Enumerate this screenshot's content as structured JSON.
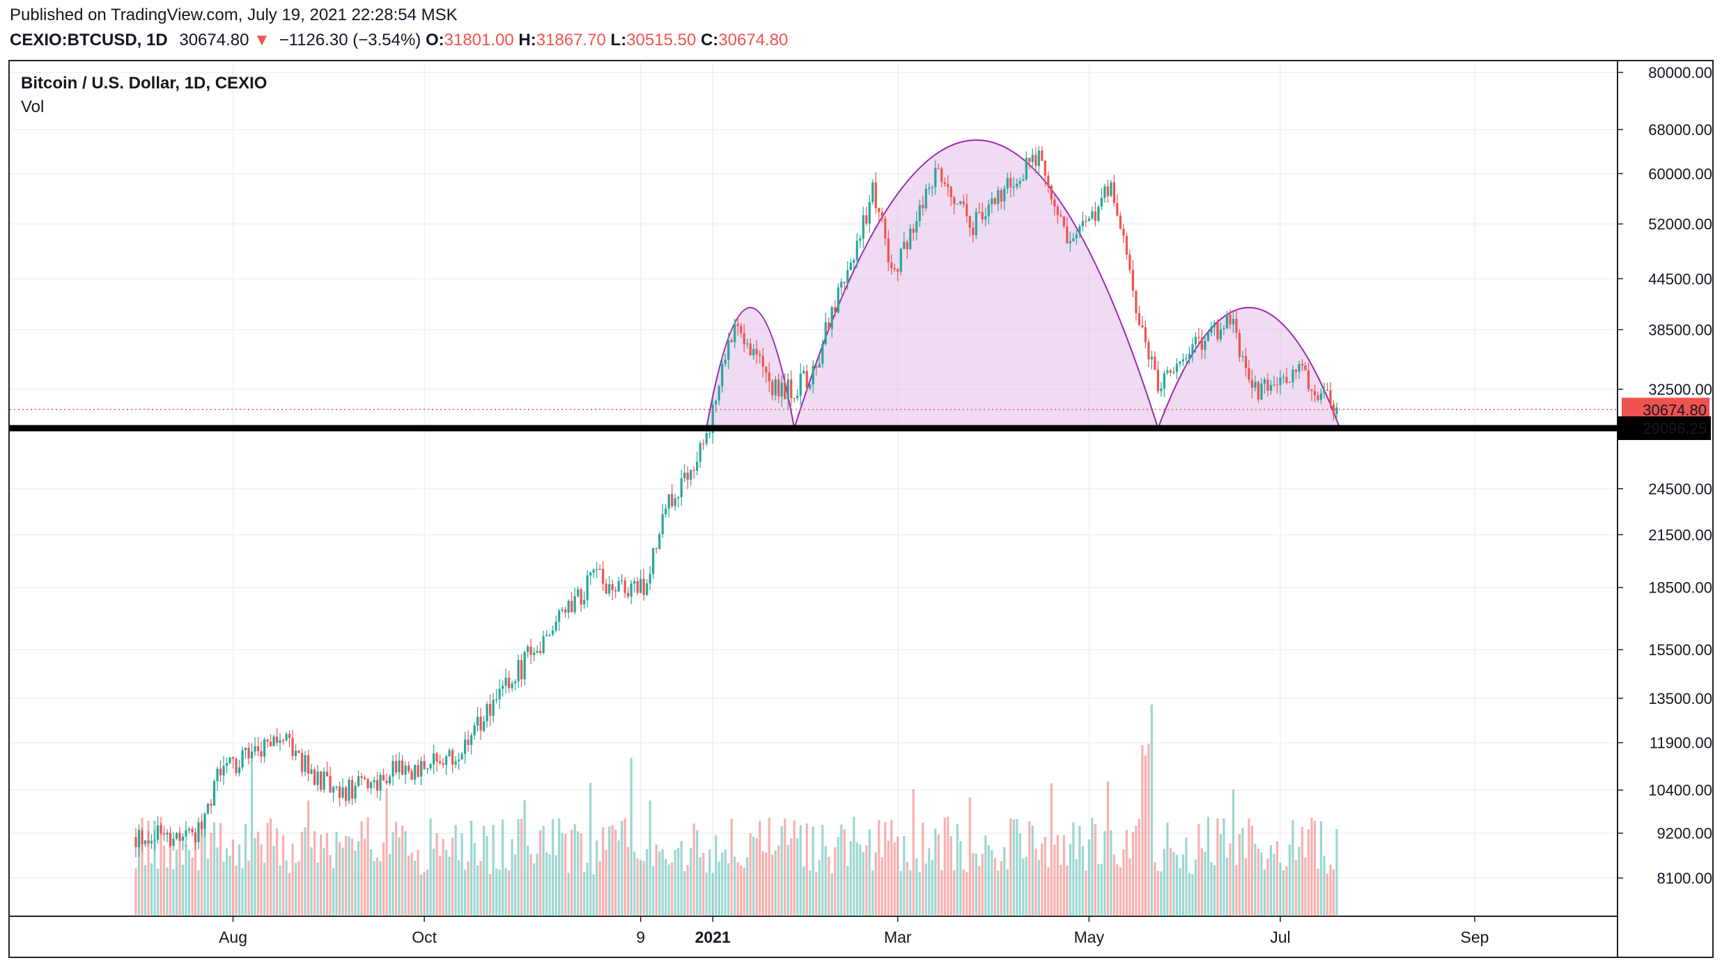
{
  "header": {
    "published": "Published on TradingView.com, July 19, 2021 22:28:54 MSK",
    "symbol": "CEXIO:BTCUSD, 1D",
    "last": "30674.80",
    "change": "−1126.30 (−3.54%)",
    "open_label": "O:",
    "open": "31801.00",
    "high_label": "H:",
    "high": "31867.70",
    "low_label": "L:",
    "low": "30515.50",
    "close_label": "C:",
    "close": "30674.80"
  },
  "chart_data": {
    "type": "candlestick",
    "title": "Bitcoin / U.S. Dollar, 1D, CEXIO",
    "volume_label": "Vol",
    "scale": "log",
    "ylim": [
      7000,
      82000
    ],
    "y_ticks": [
      "80000.00",
      "68000.00",
      "60000.00",
      "52000.00",
      "44500.00",
      "38500.00",
      "32500.00",
      "24500.00",
      "21500.00",
      "18500.00",
      "15500.00",
      "13500.00",
      "11900.00",
      "10400.00",
      "9200.00",
      "8100.00"
    ],
    "x_ticks": [
      {
        "label": "Aug",
        "bold": false
      },
      {
        "label": "Oct",
        "bold": false
      },
      {
        "label": "9",
        "bold": false
      },
      {
        "label": "2021",
        "bold": true
      },
      {
        "label": "Mar",
        "bold": false
      },
      {
        "label": "May",
        "bold": false
      },
      {
        "label": "Jul",
        "bold": false
      },
      {
        "label": "Sep",
        "bold": false
      }
    ],
    "price_path": [
      [
        "2020-07-01",
        9100
      ],
      [
        "2020-07-20",
        9200
      ],
      [
        "2020-07-28",
        11000
      ],
      [
        "2020-08-17",
        12000
      ],
      [
        "2020-09-03",
        10200
      ],
      [
        "2020-09-20",
        10900
      ],
      [
        "2020-10-10",
        11300
      ],
      [
        "2020-10-21",
        12900
      ],
      [
        "2020-11-05",
        15500
      ],
      [
        "2020-11-24",
        19000
      ],
      [
        "2020-12-10",
        18300
      ],
      [
        "2020-12-17",
        23000
      ],
      [
        "2020-12-31",
        29000
      ],
      [
        "2021-01-08",
        40000
      ],
      [
        "2021-01-22",
        32000
      ],
      [
        "2021-02-01",
        33500
      ],
      [
        "2021-02-16",
        49000
      ],
      [
        "2021-02-21",
        57000
      ],
      [
        "2021-02-28",
        45000
      ],
      [
        "2021-03-13",
        61000
      ],
      [
        "2021-03-25",
        52000
      ],
      [
        "2021-04-14",
        63500
      ],
      [
        "2021-04-25",
        48000
      ],
      [
        "2021-05-08",
        58000
      ],
      [
        "2021-05-19",
        36000
      ],
      [
        "2021-05-23",
        33000
      ],
      [
        "2021-06-15",
        40000
      ],
      [
        "2021-06-22",
        32000
      ],
      [
        "2021-07-07",
        34000
      ],
      [
        "2021-07-19",
        30674.8
      ]
    ],
    "volume_max": 13000,
    "current_price": "30674.80",
    "neckline": "29096.25",
    "patterns": [
      {
        "name": "left-shoulder",
        "start": "2020-12-30",
        "end": "2021-01-27",
        "peak": 41000,
        "base": 29096.25
      },
      {
        "name": "head",
        "start": "2021-01-27",
        "end": "2021-05-23",
        "peak": 66000,
        "base": 29096.25
      },
      {
        "name": "right-shoulder",
        "start": "2021-05-23",
        "end": "2021-07-20",
        "peak": 41000,
        "base": 29096.25
      }
    ],
    "colors": {
      "up": "#26a69a",
      "down": "#ef5350",
      "pattern_stroke": "#9c27b0",
      "pattern_fill": "#e1bee7",
      "neckline": "#000000",
      "current_line": "#ef5350"
    }
  }
}
